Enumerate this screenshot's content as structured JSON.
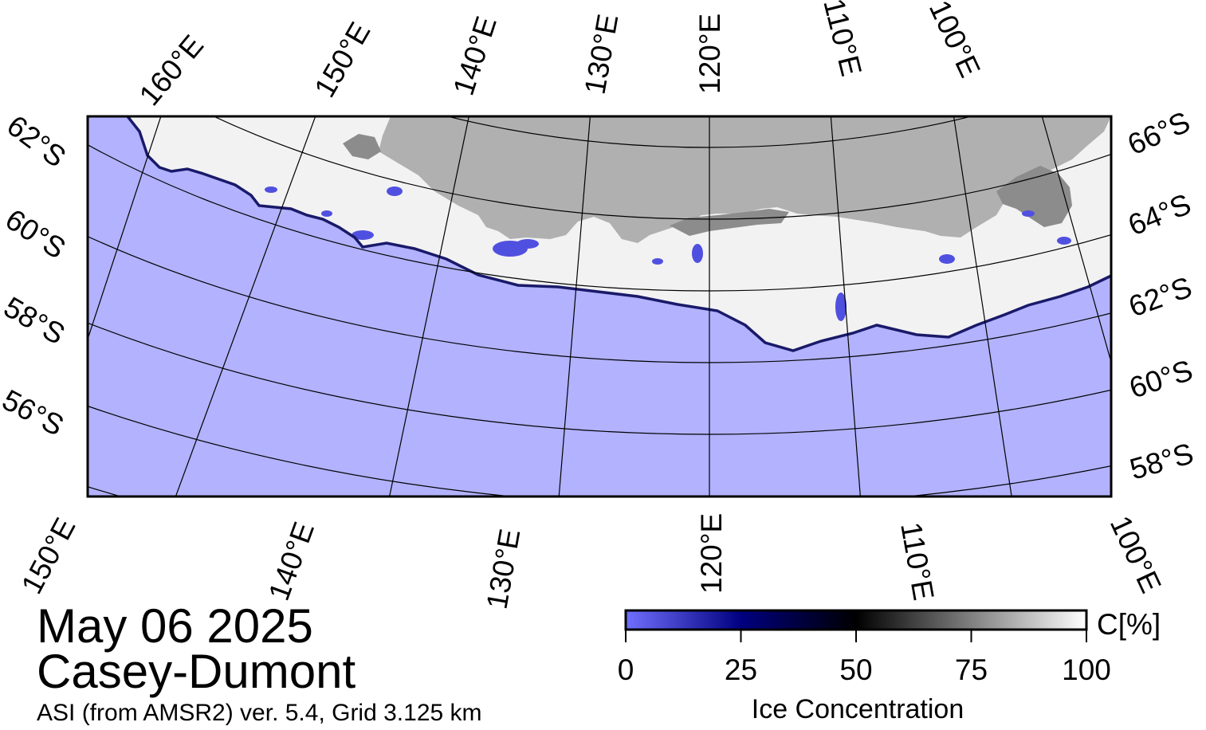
{
  "map": {
    "region": "Casey-Dumont",
    "date": "May 06 2025",
    "product": "ASI (from AMSR2) ver. 5.4,  Grid 3.125 km",
    "colors": {
      "ocean": "#b2b2ff",
      "land": "#b0b0b0",
      "ice_shelf": "#8c8c8c",
      "sea_ice": "#f2f2f2",
      "frame": "#000000"
    },
    "labels": {
      "top": [
        "160°E",
        "150°E",
        "140°E",
        "130°E",
        "120°E",
        "110°E",
        "100°E"
      ],
      "bottom": [
        "150°E",
        "140°E",
        "130°E",
        "120°E",
        "110°E",
        "100°E"
      ],
      "left": [
        "62°S",
        "60°S",
        "58°S",
        "56°S"
      ],
      "right": [
        "66°S",
        "64°S",
        "62°S",
        "60°S",
        "58°S"
      ]
    }
  },
  "colorbar": {
    "title": "Ice Concentration",
    "unit": "C[%]",
    "ticks": [
      "0",
      "25",
      "50",
      "75",
      "100"
    ],
    "stops": [
      "#7070ff",
      "#000080",
      "#000000",
      "#808080",
      "#ffffff"
    ]
  }
}
